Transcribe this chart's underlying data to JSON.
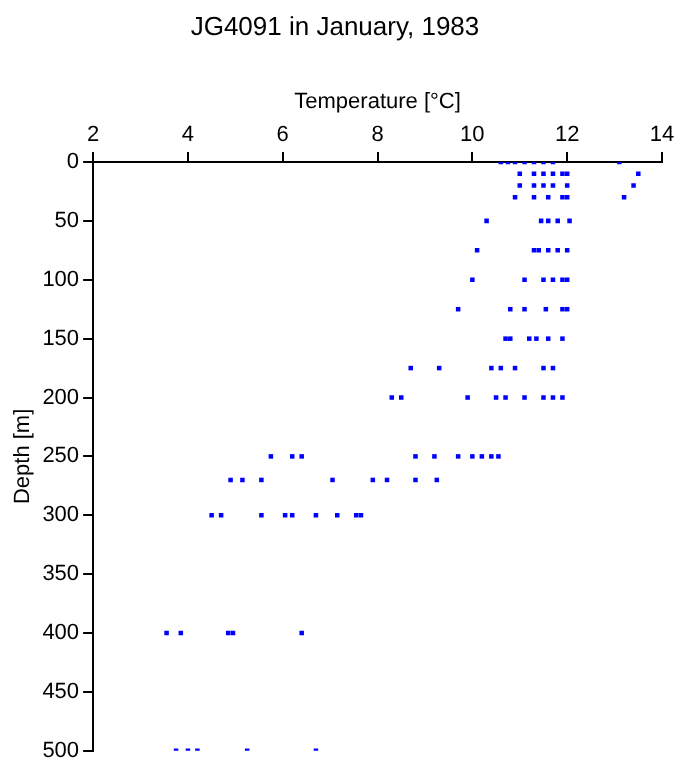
{
  "chart_data": {
    "type": "scatter",
    "title": "JG4091 in January, 1983",
    "xlabel": "Temperature [°C]",
    "ylabel": "Depth [m]",
    "xlim": [
      2,
      14
    ],
    "xticks": [
      2,
      4,
      6,
      8,
      10,
      12,
      14
    ],
    "ylim": [
      500,
      0
    ],
    "yticks": [
      0,
      50,
      100,
      150,
      200,
      250,
      300,
      350,
      400,
      450,
      500
    ],
    "grid": false,
    "legend": false,
    "marker": "square",
    "series": [
      {
        "color": "#0000ff",
        "x": [
          10.6,
          10.75,
          10.9,
          11.1,
          11.3,
          11.5,
          11.7,
          13.1,
          11.0,
          11.3,
          11.5,
          11.7,
          11.9,
          12.0,
          13.5,
          11.0,
          11.3,
          11.5,
          11.7,
          12.0,
          13.4,
          10.9,
          11.3,
          11.6,
          11.9,
          12.0,
          13.2,
          10.3,
          11.45,
          11.6,
          11.8,
          12.05,
          10.1,
          11.3,
          11.4,
          11.6,
          11.8,
          12.0,
          10.0,
          11.1,
          11.5,
          11.7,
          11.9,
          12.0,
          9.7,
          10.8,
          11.1,
          11.55,
          11.9,
          12.0,
          10.7,
          10.8,
          11.2,
          11.35,
          11.6,
          11.9,
          8.7,
          9.3,
          10.4,
          10.6,
          10.9,
          11.5,
          11.7,
          8.3,
          8.5,
          9.9,
          10.5,
          10.7,
          11.1,
          11.5,
          11.7,
          11.9,
          5.75,
          6.2,
          6.4,
          8.8,
          9.2,
          9.7,
          10.0,
          10.2,
          10.4,
          10.55,
          4.9,
          5.15,
          5.55,
          7.05,
          7.9,
          8.2,
          8.8,
          9.25,
          4.5,
          4.7,
          5.55,
          6.05,
          6.2,
          6.7,
          7.15,
          7.55,
          7.65,
          3.55,
          3.85,
          4.85,
          4.95,
          6.4,
          3.75,
          4.0,
          4.2,
          5.25,
          6.7
        ],
        "values": [
          0,
          0,
          0,
          0,
          0,
          0,
          0,
          0,
          10,
          10,
          10,
          10,
          10,
          10,
          10,
          20,
          20,
          20,
          20,
          20,
          20,
          30,
          30,
          30,
          30,
          30,
          30,
          50,
          50,
          50,
          50,
          50,
          75,
          75,
          75,
          75,
          75,
          75,
          100,
          100,
          100,
          100,
          100,
          100,
          125,
          125,
          125,
          125,
          125,
          125,
          150,
          150,
          150,
          150,
          150,
          150,
          175,
          175,
          175,
          175,
          175,
          175,
          175,
          200,
          200,
          200,
          200,
          200,
          200,
          200,
          200,
          200,
          250,
          250,
          250,
          250,
          250,
          250,
          250,
          250,
          250,
          250,
          270,
          270,
          270,
          270,
          270,
          270,
          270,
          270,
          300,
          300,
          300,
          300,
          300,
          300,
          300,
          300,
          300,
          400,
          400,
          400,
          400,
          400,
          500,
          500,
          500,
          500,
          500
        ]
      }
    ]
  }
}
